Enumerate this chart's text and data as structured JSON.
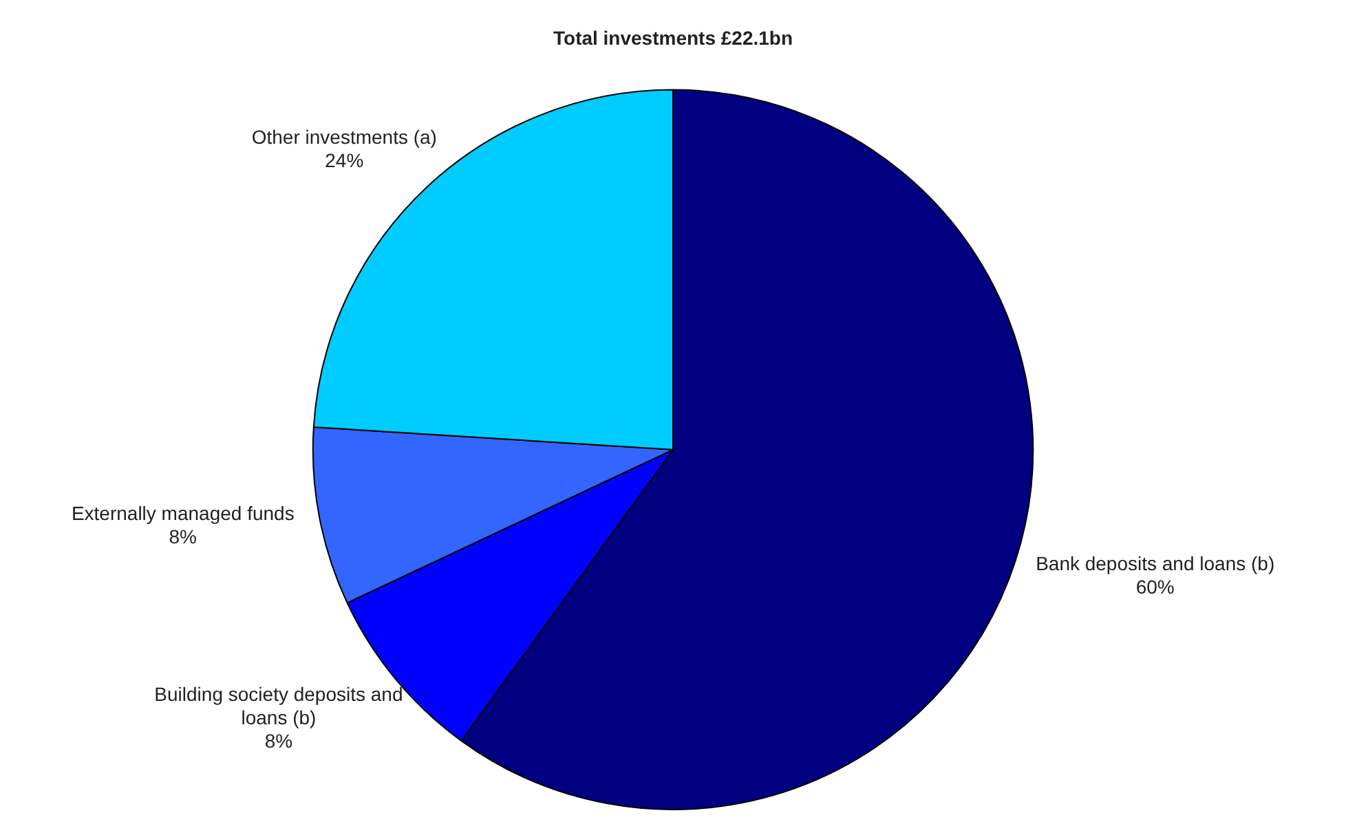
{
  "chart_data": {
    "type": "pie",
    "title": "Total investments £22.1bn",
    "categories": [
      "Bank deposits and loans (b)",
      "Building society deposits and loans (b)",
      "Externally managed funds",
      "Other investments (a)"
    ],
    "values": [
      60,
      8,
      8,
      24
    ],
    "colors": [
      "#000080",
      "#0000ff",
      "#3366ff",
      "#00ccff"
    ],
    "value_labels": [
      "60%",
      "8%",
      "8%",
      "24%"
    ],
    "legend": false
  }
}
